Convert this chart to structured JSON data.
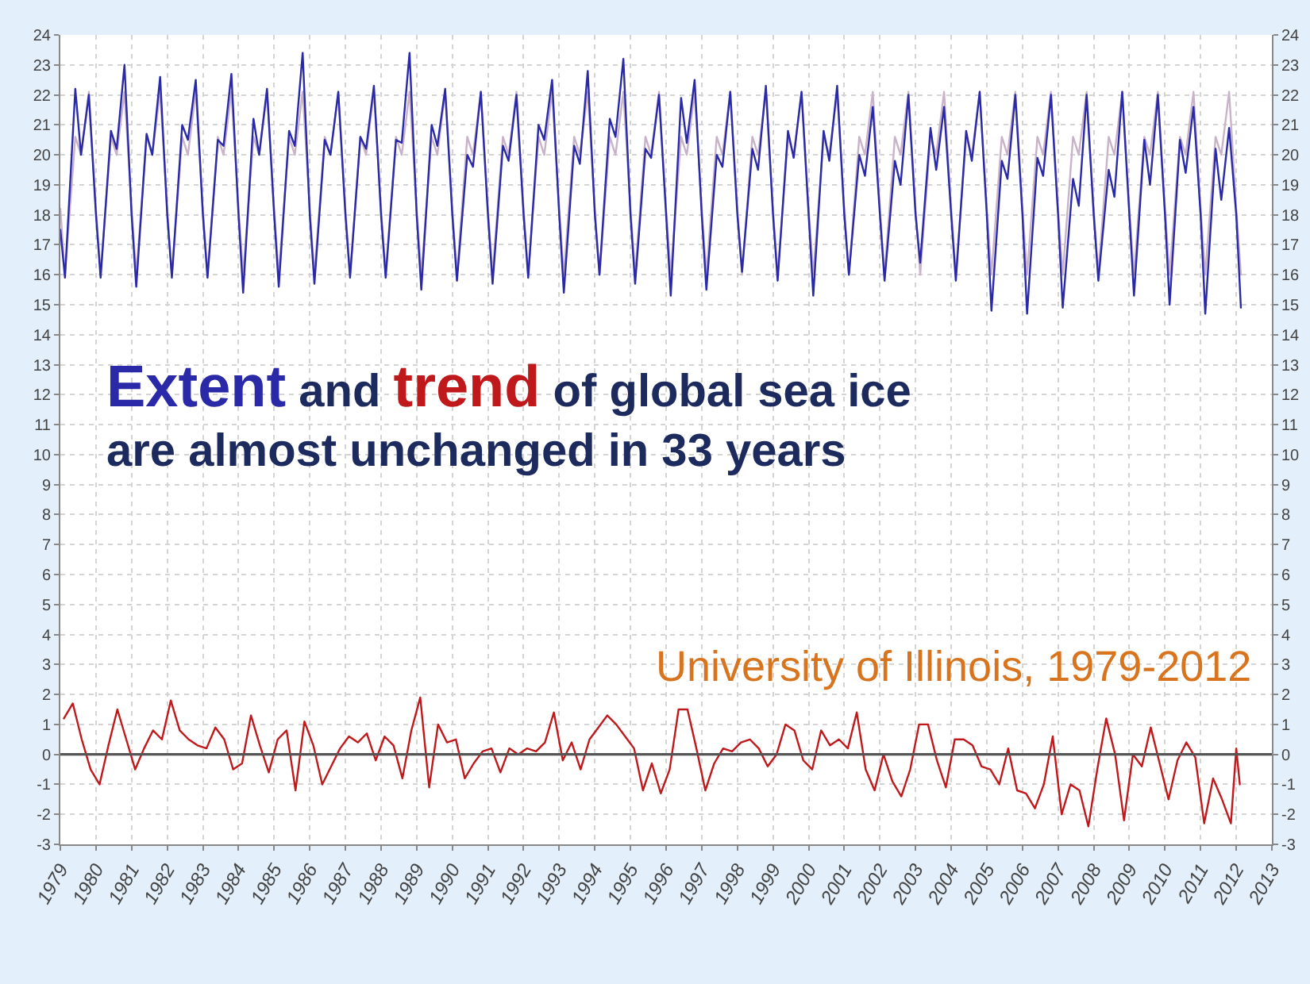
{
  "chart_data": {
    "type": "line",
    "title": "Extent and trend of global sea ice are almost unchanged in 33 years",
    "annotations": [
      "University of Illinois, 1979-2012"
    ],
    "xlim": [
      1979,
      2013
    ],
    "xticks": [
      1979,
      1980,
      1981,
      1982,
      1983,
      1984,
      1985,
      1986,
      1987,
      1988,
      1989,
      1990,
      1991,
      1992,
      1993,
      1994,
      1995,
      1996,
      1997,
      1998,
      1999,
      2000,
      2001,
      2002,
      2003,
      2004,
      2005,
      2006,
      2007,
      2008,
      2009,
      2010,
      2011,
      2012,
      2013
    ],
    "ylim": [
      -3,
      24
    ],
    "yticks": [
      -3,
      -2,
      -1,
      0,
      1,
      2,
      3,
      4,
      5,
      6,
      7,
      8,
      9,
      10,
      11,
      12,
      13,
      14,
      15,
      16,
      17,
      18,
      19,
      20,
      21,
      22,
      23,
      24
    ],
    "y2lim": [
      -3,
      24
    ],
    "y2ticks": [
      -3,
      -2,
      -1,
      0,
      1,
      2,
      3,
      4,
      5,
      6,
      7,
      8,
      9,
      10,
      11,
      12,
      13,
      14,
      15,
      16,
      17,
      18,
      19,
      20,
      21,
      22,
      23,
      24
    ],
    "grid": true,
    "line_style": "solid",
    "ref_lines": [
      {
        "axis": "y",
        "value": 0,
        "color": "#555555"
      }
    ],
    "series": [
      {
        "color": "#c9b3c9",
        "x": [
          1979,
          1979.13,
          1979.42,
          1979.58,
          1979.8,
          1980,
          1980.13,
          1980.42,
          1980.58,
          1980.8,
          1981,
          1981.13,
          1981.42,
          1981.58,
          1981.8,
          1982,
          1982.13,
          1982.42,
          1982.58,
          1982.8,
          1983,
          1983.13,
          1983.42,
          1983.58,
          1983.8,
          1984,
          1984.13,
          1984.42,
          1984.58,
          1984.8,
          1985,
          1985.13,
          1985.42,
          1985.58,
          1985.8,
          1986,
          1986.13,
          1986.42,
          1986.58,
          1986.8,
          1987,
          1987.13,
          1987.42,
          1987.58,
          1987.8,
          1988,
          1988.13,
          1988.42,
          1988.58,
          1988.8,
          1989,
          1989.13,
          1989.42,
          1989.58,
          1989.8,
          1990,
          1990.13,
          1990.42,
          1990.58,
          1990.8,
          1991,
          1991.13,
          1991.42,
          1991.58,
          1991.8,
          1992,
          1992.13,
          1992.42,
          1992.58,
          1992.8,
          1993,
          1993.13,
          1993.42,
          1993.58,
          1993.8,
          1994,
          1994.13,
          1994.42,
          1994.58,
          1994.8,
          1995,
          1995.13,
          1995.42,
          1995.58,
          1995.8,
          1996,
          1996.13,
          1996.42,
          1996.58,
          1996.8,
          1997,
          1997.13,
          1997.42,
          1997.58,
          1997.8,
          1998,
          1998.13,
          1998.42,
          1998.58,
          1998.8,
          1999,
          1999.13,
          1999.42,
          1999.58,
          1999.8,
          2000,
          2000.13,
          2000.42,
          2000.58,
          2000.8,
          2001,
          2001.13,
          2001.42,
          2001.58,
          2001.8,
          2002,
          2002.13,
          2002.42,
          2002.58,
          2002.8,
          2003,
          2003.13,
          2003.42,
          2003.58,
          2003.8,
          2004,
          2004.13,
          2004.42,
          2004.58,
          2004.8,
          2005,
          2005.13,
          2005.42,
          2005.58,
          2005.8,
          2006,
          2006.13,
          2006.42,
          2006.58,
          2006.8,
          2007,
          2007.13,
          2007.42,
          2007.58,
          2007.8,
          2008,
          2008.13,
          2008.42,
          2008.58,
          2008.8,
          2009,
          2009.13,
          2009.42,
          2009.58,
          2009.8,
          2010,
          2010.13,
          2010.42,
          2010.58,
          2010.8,
          2011,
          2011.13,
          2011.42,
          2011.58,
          2011.8,
          2012,
          2012.13
        ],
        "values": [
          18.2,
          16,
          20.6,
          20,
          22.1,
          18.2,
          16,
          20.6,
          20,
          22.1,
          18.2,
          16,
          20.6,
          20,
          22.1,
          18.2,
          16,
          20.6,
          20,
          22.1,
          18.2,
          16,
          20.6,
          20,
          22.1,
          18.2,
          16,
          20.6,
          20,
          22.1,
          18.2,
          16,
          20.6,
          20,
          22.1,
          18.2,
          16,
          20.6,
          20,
          22.1,
          18.2,
          16,
          20.6,
          20,
          22.1,
          18.2,
          16,
          20.6,
          20,
          22.1,
          18.2,
          16,
          20.6,
          20,
          22.1,
          18.2,
          16,
          20.6,
          20,
          22.1,
          18.2,
          16,
          20.6,
          20,
          22.1,
          18.2,
          16,
          20.6,
          20,
          22.1,
          18.2,
          16,
          20.6,
          20,
          22.1,
          18.2,
          16,
          20.6,
          20,
          22.1,
          18.2,
          16,
          20.6,
          20,
          22.1,
          18.2,
          16,
          20.6,
          20,
          22.1,
          18.2,
          16,
          20.6,
          20,
          22.1,
          18.2,
          16,
          20.6,
          20,
          22.1,
          18.2,
          16,
          20.6,
          20,
          22.1,
          18.2,
          16,
          20.6,
          20,
          22.1,
          18.2,
          16,
          20.6,
          20,
          22.1,
          18.2,
          16,
          20.6,
          20,
          22.1,
          18.2,
          16,
          20.6,
          20,
          22.1,
          18.2,
          16,
          20.6,
          20,
          22.1,
          18.2,
          16,
          20.6,
          20,
          22.1,
          18.2,
          16,
          20.6,
          20,
          22.1,
          18.2,
          16,
          20.6,
          20,
          22.1,
          18.2,
          16,
          20.6,
          20,
          22.1,
          18.2,
          16,
          20.6,
          20,
          22.1,
          18.2,
          16,
          20.6,
          20,
          22.1,
          18.2,
          16,
          20.6,
          20,
          22.1,
          18.2,
          16
        ]
      },
      {
        "color": "#2a2aa8",
        "x": [
          1979,
          1979.13,
          1979.42,
          1979.58,
          1979.8,
          1980,
          1980.13,
          1980.42,
          1980.58,
          1980.8,
          1981,
          1981.13,
          1981.42,
          1981.58,
          1981.8,
          1982,
          1982.13,
          1982.42,
          1982.58,
          1982.8,
          1983,
          1983.13,
          1983.42,
          1983.58,
          1983.8,
          1984,
          1984.13,
          1984.42,
          1984.58,
          1984.8,
          1985,
          1985.13,
          1985.42,
          1985.58,
          1985.8,
          1986,
          1986.13,
          1986.42,
          1986.58,
          1986.8,
          1987,
          1987.13,
          1987.42,
          1987.58,
          1987.8,
          1988,
          1988.13,
          1988.42,
          1988.58,
          1988.8,
          1989,
          1989.13,
          1989.42,
          1989.58,
          1989.8,
          1990,
          1990.13,
          1990.42,
          1990.58,
          1990.8,
          1991,
          1991.13,
          1991.42,
          1991.58,
          1991.8,
          1992,
          1992.13,
          1992.42,
          1992.58,
          1992.8,
          1993,
          1993.13,
          1993.42,
          1993.58,
          1993.8,
          1994,
          1994.13,
          1994.42,
          1994.58,
          1994.8,
          1995,
          1995.13,
          1995.42,
          1995.58,
          1995.8,
          1996,
          1996.13,
          1996.42,
          1996.58,
          1996.8,
          1997,
          1997.13,
          1997.42,
          1997.58,
          1997.8,
          1998,
          1998.13,
          1998.42,
          1998.58,
          1998.8,
          1999,
          1999.13,
          1999.42,
          1999.58,
          1999.8,
          2000,
          2000.13,
          2000.42,
          2000.58,
          2000.8,
          2001,
          2001.13,
          2001.42,
          2001.58,
          2001.8,
          2002,
          2002.13,
          2002.42,
          2002.58,
          2002.8,
          2003,
          2003.13,
          2003.42,
          2003.58,
          2003.8,
          2004,
          2004.13,
          2004.42,
          2004.58,
          2004.8,
          2005,
          2005.13,
          2005.42,
          2005.58,
          2005.8,
          2006,
          2006.13,
          2006.42,
          2006.58,
          2006.8,
          2007,
          2007.13,
          2007.42,
          2007.58,
          2007.8,
          2008,
          2008.13,
          2008.42,
          2008.58,
          2008.8,
          2009,
          2009.13,
          2009.42,
          2009.58,
          2009.8,
          2010,
          2010.13,
          2010.42,
          2010.58,
          2010.8,
          2011,
          2011.13,
          2011.42,
          2011.58,
          2011.8,
          2012,
          2012.13
        ],
        "values": [
          17.5,
          15.9,
          22.2,
          20,
          22,
          18,
          15.9,
          20.8,
          20.2,
          23,
          18,
          15.6,
          20.7,
          20,
          22.6,
          18,
          15.9,
          21,
          20.5,
          22.5,
          18,
          15.9,
          20.5,
          20.3,
          22.7,
          18,
          15.4,
          21.2,
          20,
          22.2,
          18,
          15.6,
          20.8,
          20.3,
          23.4,
          18,
          15.7,
          20.5,
          20,
          22.1,
          18,
          15.9,
          20.6,
          20.2,
          22.3,
          18,
          15.9,
          20.5,
          20.4,
          23.4,
          18,
          15.5,
          21,
          20.3,
          22.2,
          18,
          15.8,
          20,
          19.6,
          22.1,
          18,
          15.7,
          20.3,
          19.8,
          22,
          18,
          15.9,
          21,
          20.5,
          22.5,
          18,
          15.4,
          20.3,
          19.7,
          22.8,
          18,
          16,
          21.2,
          20.6,
          23.2,
          18,
          15.7,
          20.2,
          19.9,
          22,
          18,
          15.3,
          21.9,
          20.4,
          22.5,
          18,
          15.5,
          20,
          19.6,
          22.1,
          18,
          16.1,
          20.2,
          19.5,
          22.3,
          18,
          15.8,
          20.8,
          19.9,
          22.1,
          18,
          15.3,
          20.8,
          19.8,
          22.3,
          18,
          16,
          20,
          19.3,
          21.6,
          18,
          15.8,
          19.8,
          19,
          22,
          18,
          16.4,
          20.9,
          19.5,
          21.6,
          18,
          15.8,
          20.8,
          19.8,
          22.1,
          18,
          14.8,
          19.8,
          19.2,
          22,
          18,
          14.7,
          19.9,
          19.3,
          22,
          18,
          14.9,
          19.2,
          18.3,
          22,
          18,
          15.8,
          19.5,
          18.6,
          22.1,
          18,
          15.3,
          20.5,
          19,
          22,
          18,
          15,
          20.5,
          19.4,
          21.6,
          18,
          14.7,
          20.2,
          18.5,
          20.9,
          18,
          14.9
        ]
      },
      {
        "color": "#c0191c",
        "x": [
          1979.1,
          1979.35,
          1979.6,
          1979.85,
          1980.1,
          1980.35,
          1980.6,
          1980.85,
          1981.1,
          1981.35,
          1981.6,
          1981.85,
          1982.1,
          1982.35,
          1982.6,
          1982.85,
          1983.1,
          1983.35,
          1983.6,
          1983.85,
          1984.1,
          1984.35,
          1984.6,
          1984.85,
          1985.1,
          1985.35,
          1985.6,
          1985.85,
          1986.1,
          1986.35,
          1986.6,
          1986.85,
          1987.1,
          1987.35,
          1987.6,
          1987.85,
          1988.1,
          1988.35,
          1988.6,
          1988.85,
          1989.1,
          1989.35,
          1989.6,
          1989.85,
          1990.1,
          1990.35,
          1990.6,
          1990.85,
          1991.1,
          1991.35,
          1991.6,
          1991.85,
          1992.1,
          1992.35,
          1992.6,
          1992.85,
          1993.1,
          1993.35,
          1993.6,
          1993.85,
          1994.1,
          1994.35,
          1994.6,
          1994.85,
          1995.1,
          1995.35,
          1995.6,
          1995.85,
          1996.1,
          1996.35,
          1996.6,
          1996.85,
          1997.1,
          1997.35,
          1997.6,
          1997.85,
          1998.1,
          1998.35,
          1998.6,
          1998.85,
          1999.1,
          1999.35,
          1999.6,
          1999.85,
          2000.1,
          2000.35,
          2000.6,
          2000.85,
          2001.1,
          2001.35,
          2001.6,
          2001.85,
          2002.1,
          2002.35,
          2002.6,
          2002.85,
          2003.1,
          2003.35,
          2003.6,
          2003.85,
          2004.1,
          2004.35,
          2004.6,
          2004.85,
          2005.1,
          2005.35,
          2005.6,
          2005.85,
          2006.1,
          2006.35,
          2006.6,
          2006.85,
          2007.1,
          2007.35,
          2007.6,
          2007.85,
          2008.1,
          2008.35,
          2008.6,
          2008.85,
          2009.1,
          2009.35,
          2009.6,
          2009.85,
          2010.1,
          2010.35,
          2010.6,
          2010.85,
          2011.1,
          2011.35,
          2011.6,
          2011.85,
          2012,
          2012.1
        ],
        "values": [
          1.2,
          1.7,
          0.5,
          -0.5,
          -1,
          0.3,
          1.5,
          0.5,
          -0.5,
          0.2,
          0.8,
          0.5,
          1.8,
          0.8,
          0.5,
          0.3,
          0.2,
          0.9,
          0.5,
          -0.5,
          -0.3,
          1.3,
          0.3,
          -0.6,
          0.5,
          0.8,
          -1.2,
          1.1,
          0.3,
          -1,
          -0.4,
          0.2,
          0.6,
          0.4,
          0.7,
          -0.2,
          0.6,
          0.3,
          -0.8,
          0.8,
          1.9,
          -1.1,
          1,
          0.4,
          0.5,
          -0.8,
          -0.3,
          0.1,
          0.2,
          -0.6,
          0.2,
          0,
          0.2,
          0.1,
          0.4,
          1.4,
          -0.2,
          0.4,
          -0.5,
          0.5,
          0.9,
          1.3,
          1,
          0.6,
          0.2,
          -1.2,
          -0.3,
          -1.3,
          -0.5,
          1.5,
          1.5,
          0.2,
          -1.2,
          -0.3,
          0.2,
          0.1,
          0.4,
          0.5,
          0.2,
          -0.4,
          0,
          1,
          0.8,
          -0.2,
          -0.5,
          0.8,
          0.3,
          0.5,
          0.2,
          1.4,
          -0.5,
          -1.2,
          0,
          -0.9,
          -1.4,
          -0.5,
          1,
          1,
          -0.2,
          -1.1,
          0.5,
          0.5,
          0.3,
          -0.4,
          -0.5,
          -1,
          0.2,
          -1.2,
          -1.3,
          -1.8,
          -1,
          0.6,
          -2,
          -1,
          -1.2,
          -2.4,
          -0.5,
          1.2,
          0,
          -2.2,
          0,
          -0.4,
          0.9,
          -0.3,
          -1.5,
          -0.2,
          0.4,
          -0.1,
          -2.3,
          -0.8,
          -1.5,
          -2.3,
          0.2,
          -1
        ]
      }
    ]
  }
}
